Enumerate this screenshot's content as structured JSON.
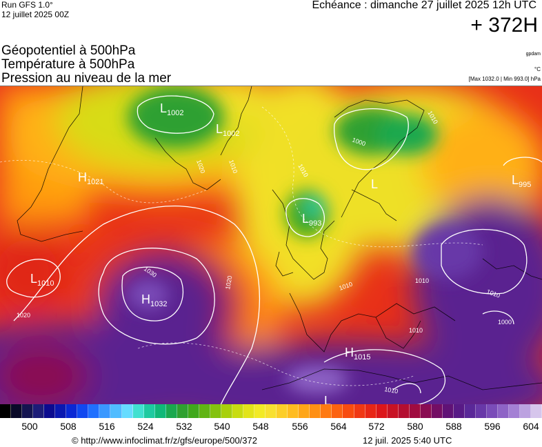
{
  "header": {
    "run_label": "Run GFS 1.0°",
    "run_date": "12 juillet 2025 00Z",
    "echeance": "Echéance : dimanche 27 juillet 2025 12h UTC",
    "lead_time": "+ 372H"
  },
  "titles": {
    "line1": "Géopotentiel à 500hPa",
    "line2": "Température à 500hPa",
    "line3": "Pression au niveau de la mer"
  },
  "units": {
    "geopotential": "gpdam",
    "temperature": "°C",
    "pressure": "[Max 1032.0 | Min 993.0] hPa"
  },
  "pressure_centers": [
    {
      "type": "H",
      "value": "1032"
    },
    {
      "type": "H",
      "value": "1021"
    },
    {
      "type": "H",
      "value": "1015"
    },
    {
      "type": "L",
      "value": "1002"
    },
    {
      "type": "L",
      "value": "1002"
    },
    {
      "type": "L",
      "value": "993"
    },
    {
      "type": "L",
      "value": "1010"
    },
    {
      "type": "L",
      "value": "995"
    },
    {
      "type": "L",
      "value": ""
    },
    {
      "type": "L",
      "value": ""
    }
  ],
  "isobar_labels": [
    "1030",
    "1020",
    "1020",
    "1020",
    "1010",
    "1010",
    "1010",
    "1010",
    "1010",
    "1000",
    "1000",
    "1010",
    "1010",
    "1010"
  ],
  "colorbar": {
    "colors": [
      "#000000",
      "#0a0a28",
      "#141450",
      "#1c1c78",
      "#0b0b8f",
      "#0a18b0",
      "#0a28d4",
      "#1048f0",
      "#2070ff",
      "#3a98ff",
      "#50bcff",
      "#66dcff",
      "#40e0d0",
      "#1ecaa0",
      "#10b878",
      "#1aa84e",
      "#2fa030",
      "#40a81c",
      "#60b414",
      "#84c20e",
      "#a8d00c",
      "#c8dc10",
      "#e2e41a",
      "#f2ea26",
      "#f8e030",
      "#fcce28",
      "#ffbc20",
      "#ffa618",
      "#ff9014",
      "#ff7a12",
      "#fc6210",
      "#f84c10",
      "#f03814",
      "#e82616",
      "#dc161a",
      "#c81224",
      "#b40e30",
      "#a00c40",
      "#8a0c52",
      "#740e64",
      "#601276",
      "#581a86",
      "#5a2898",
      "#6838a8",
      "#7a4cb8",
      "#8e64c6",
      "#a480d4",
      "#bca2e0",
      "#d6c6ec"
    ],
    "tick_labels": [
      "500",
      "508",
      "516",
      "524",
      "532",
      "540",
      "548",
      "556",
      "564",
      "572",
      "580",
      "588",
      "596",
      "604"
    ]
  },
  "footer": {
    "credit": "© http://www.infoclimat.fr/z/gfs/europe/500/372",
    "timestamp": "12 juil. 2025  5:40 UTC"
  }
}
